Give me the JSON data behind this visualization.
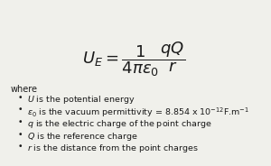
{
  "background_color": "#f0f0eb",
  "formula_main": "$U_E = \\dfrac{\\,\\,1\\,\\,}{4\\pi\\varepsilon_0}\\dfrac{qQ}{r}$",
  "where_text": "where",
  "bullets": [
    "$U$ is the potential energy",
    "$\\varepsilon_0$ is the vacuum permittivity = 8.854 x 10$^{-12}$F.m$^{-1}$",
    "$q$ is the electric charge of the point charge",
    "$Q$ is the reference charge",
    "$r$ is the distance from the point charges"
  ],
  "text_color": "#1a1a1a",
  "formula_fontsize": 13,
  "where_fontsize": 7,
  "bullet_fontsize": 6.8,
  "bullet_symbol": "•",
  "fig_width": 3.0,
  "fig_height": 1.84,
  "dpi": 100
}
